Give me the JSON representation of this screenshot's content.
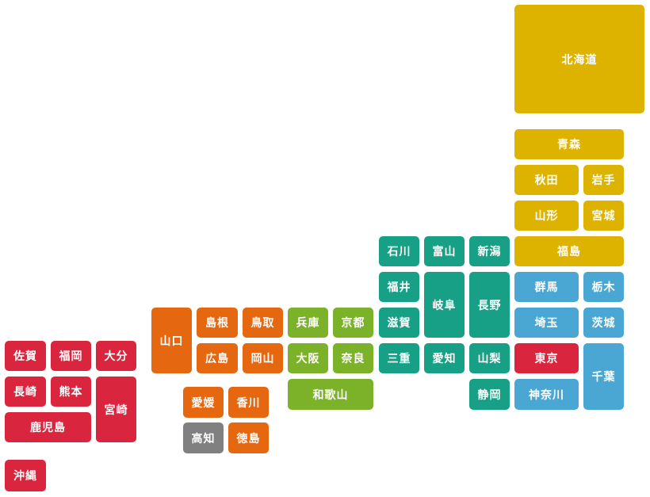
{
  "colors": {
    "hokkaido_tohoku": "#DDB300",
    "kanto": "#4AA7D3",
    "tokyo": "#D9263E",
    "chubu": "#17A085",
    "kinki": "#7CB22A",
    "chugoku": "#E56710",
    "shikoku_orange": "#E56710",
    "shikoku_gray": "#808080",
    "kyushu": "#D9263E",
    "text": "#FFFFFF"
  },
  "prefectures": [
    {
      "id": "hokkaido",
      "label": "北海道",
      "region": "hokkaido_tohoku"
    },
    {
      "id": "aomori",
      "label": "青森",
      "region": "hokkaido_tohoku"
    },
    {
      "id": "akita",
      "label": "秋田",
      "region": "hokkaido_tohoku"
    },
    {
      "id": "iwate",
      "label": "岩手",
      "region": "hokkaido_tohoku"
    },
    {
      "id": "yamagata",
      "label": "山形",
      "region": "hokkaido_tohoku"
    },
    {
      "id": "miyagi",
      "label": "宮城",
      "region": "hokkaido_tohoku"
    },
    {
      "id": "fukushima",
      "label": "福島",
      "region": "hokkaido_tohoku"
    },
    {
      "id": "ishikawa",
      "label": "石川",
      "region": "chubu"
    },
    {
      "id": "toyama",
      "label": "富山",
      "region": "chubu"
    },
    {
      "id": "niigata",
      "label": "新潟",
      "region": "chubu"
    },
    {
      "id": "fukui",
      "label": "福井",
      "region": "chubu"
    },
    {
      "id": "gifu",
      "label": "岐阜",
      "region": "chubu"
    },
    {
      "id": "nagano",
      "label": "長野",
      "region": "chubu"
    },
    {
      "id": "gunma",
      "label": "群馬",
      "region": "kanto"
    },
    {
      "id": "tochigi",
      "label": "栃木",
      "region": "kanto"
    },
    {
      "id": "saitama",
      "label": "埼玉",
      "region": "kanto"
    },
    {
      "id": "ibaraki",
      "label": "茨城",
      "region": "kanto"
    },
    {
      "id": "tokyo",
      "label": "東京",
      "region": "tokyo"
    },
    {
      "id": "chiba",
      "label": "千葉",
      "region": "kanto"
    },
    {
      "id": "kanagawa",
      "label": "神奈川",
      "region": "kanto"
    },
    {
      "id": "yamanashi",
      "label": "山梨",
      "region": "chubu"
    },
    {
      "id": "shizuoka",
      "label": "静岡",
      "region": "chubu"
    },
    {
      "id": "aichi",
      "label": "愛知",
      "region": "chubu"
    },
    {
      "id": "mie",
      "label": "三重",
      "region": "chubu"
    },
    {
      "id": "shiga",
      "label": "滋賀",
      "region": "chubu"
    },
    {
      "id": "kyoto",
      "label": "京都",
      "region": "kinki"
    },
    {
      "id": "hyogo",
      "label": "兵庫",
      "region": "kinki"
    },
    {
      "id": "osaka",
      "label": "大阪",
      "region": "kinki"
    },
    {
      "id": "nara",
      "label": "奈良",
      "region": "kinki"
    },
    {
      "id": "wakayama",
      "label": "和歌山",
      "region": "kinki"
    },
    {
      "id": "tottori",
      "label": "鳥取",
      "region": "chugoku"
    },
    {
      "id": "shimane",
      "label": "島根",
      "region": "chugoku"
    },
    {
      "id": "okayama",
      "label": "岡山",
      "region": "chugoku"
    },
    {
      "id": "hiroshima",
      "label": "広島",
      "region": "chugoku"
    },
    {
      "id": "yamaguchi",
      "label": "山口",
      "region": "chugoku"
    },
    {
      "id": "kagawa",
      "label": "香川",
      "region": "shikoku_orange"
    },
    {
      "id": "ehime",
      "label": "愛媛",
      "region": "shikoku_orange"
    },
    {
      "id": "tokushima",
      "label": "徳島",
      "region": "shikoku_orange"
    },
    {
      "id": "kochi",
      "label": "高知",
      "region": "shikoku_gray"
    },
    {
      "id": "fukuoka",
      "label": "福岡",
      "region": "kyushu"
    },
    {
      "id": "saga",
      "label": "佐賀",
      "region": "kyushu"
    },
    {
      "id": "oita",
      "label": "大分",
      "region": "kyushu"
    },
    {
      "id": "nagasaki",
      "label": "長崎",
      "region": "kyushu"
    },
    {
      "id": "kumamoto",
      "label": "熊本",
      "region": "kyushu"
    },
    {
      "id": "miyazaki",
      "label": "宮崎",
      "region": "kyushu"
    },
    {
      "id": "kagoshima",
      "label": "鹿児島",
      "region": "kyushu"
    },
    {
      "id": "okinawa",
      "label": "沖縄",
      "region": "kyushu"
    }
  ]
}
